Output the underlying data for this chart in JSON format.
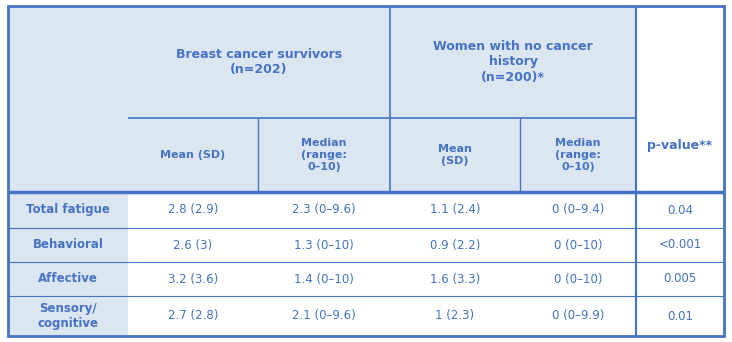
{
  "header_bg": "#dce6f1",
  "border_color": "#4472c4",
  "text_color": "#4472c4",
  "col1_header": "Breast cancer survivors\n(n=202)",
  "col2_header": "Women with no cancer\nhistory\n(n=200)*",
  "col3_header": "p-value**",
  "sub_headers": [
    "Mean (SD)",
    "Median\n(range:\n0–10)",
    "Mean\n(SD)",
    "Median\n(range:\n0–10)"
  ],
  "row_labels": [
    "Total fatigue",
    "Behavioral",
    "Affective",
    "Sensory/\ncognitive"
  ],
  "data": [
    [
      "2.8 (2.9)",
      "2.3 (0–9.6)",
      "1.1 (2.4)",
      "0 (0–9.4)",
      "0.04"
    ],
    [
      "2.6 (3)",
      "1.3 (0–10)",
      "0.9 (2.2)",
      "0 (0–10)",
      "<0.001"
    ],
    [
      "3.2 (3.6)",
      "1.4 (0–10)",
      "1.6 (3.3)",
      "0 (0–10)",
      "0.005"
    ],
    [
      "2.7 (2.8)",
      "2.1 (0–9.6)",
      "1 (2.3)",
      "0 (0–9.9)",
      "0.01"
    ]
  ],
  "figsize": [
    7.32,
    3.42
  ],
  "dpi": 100
}
